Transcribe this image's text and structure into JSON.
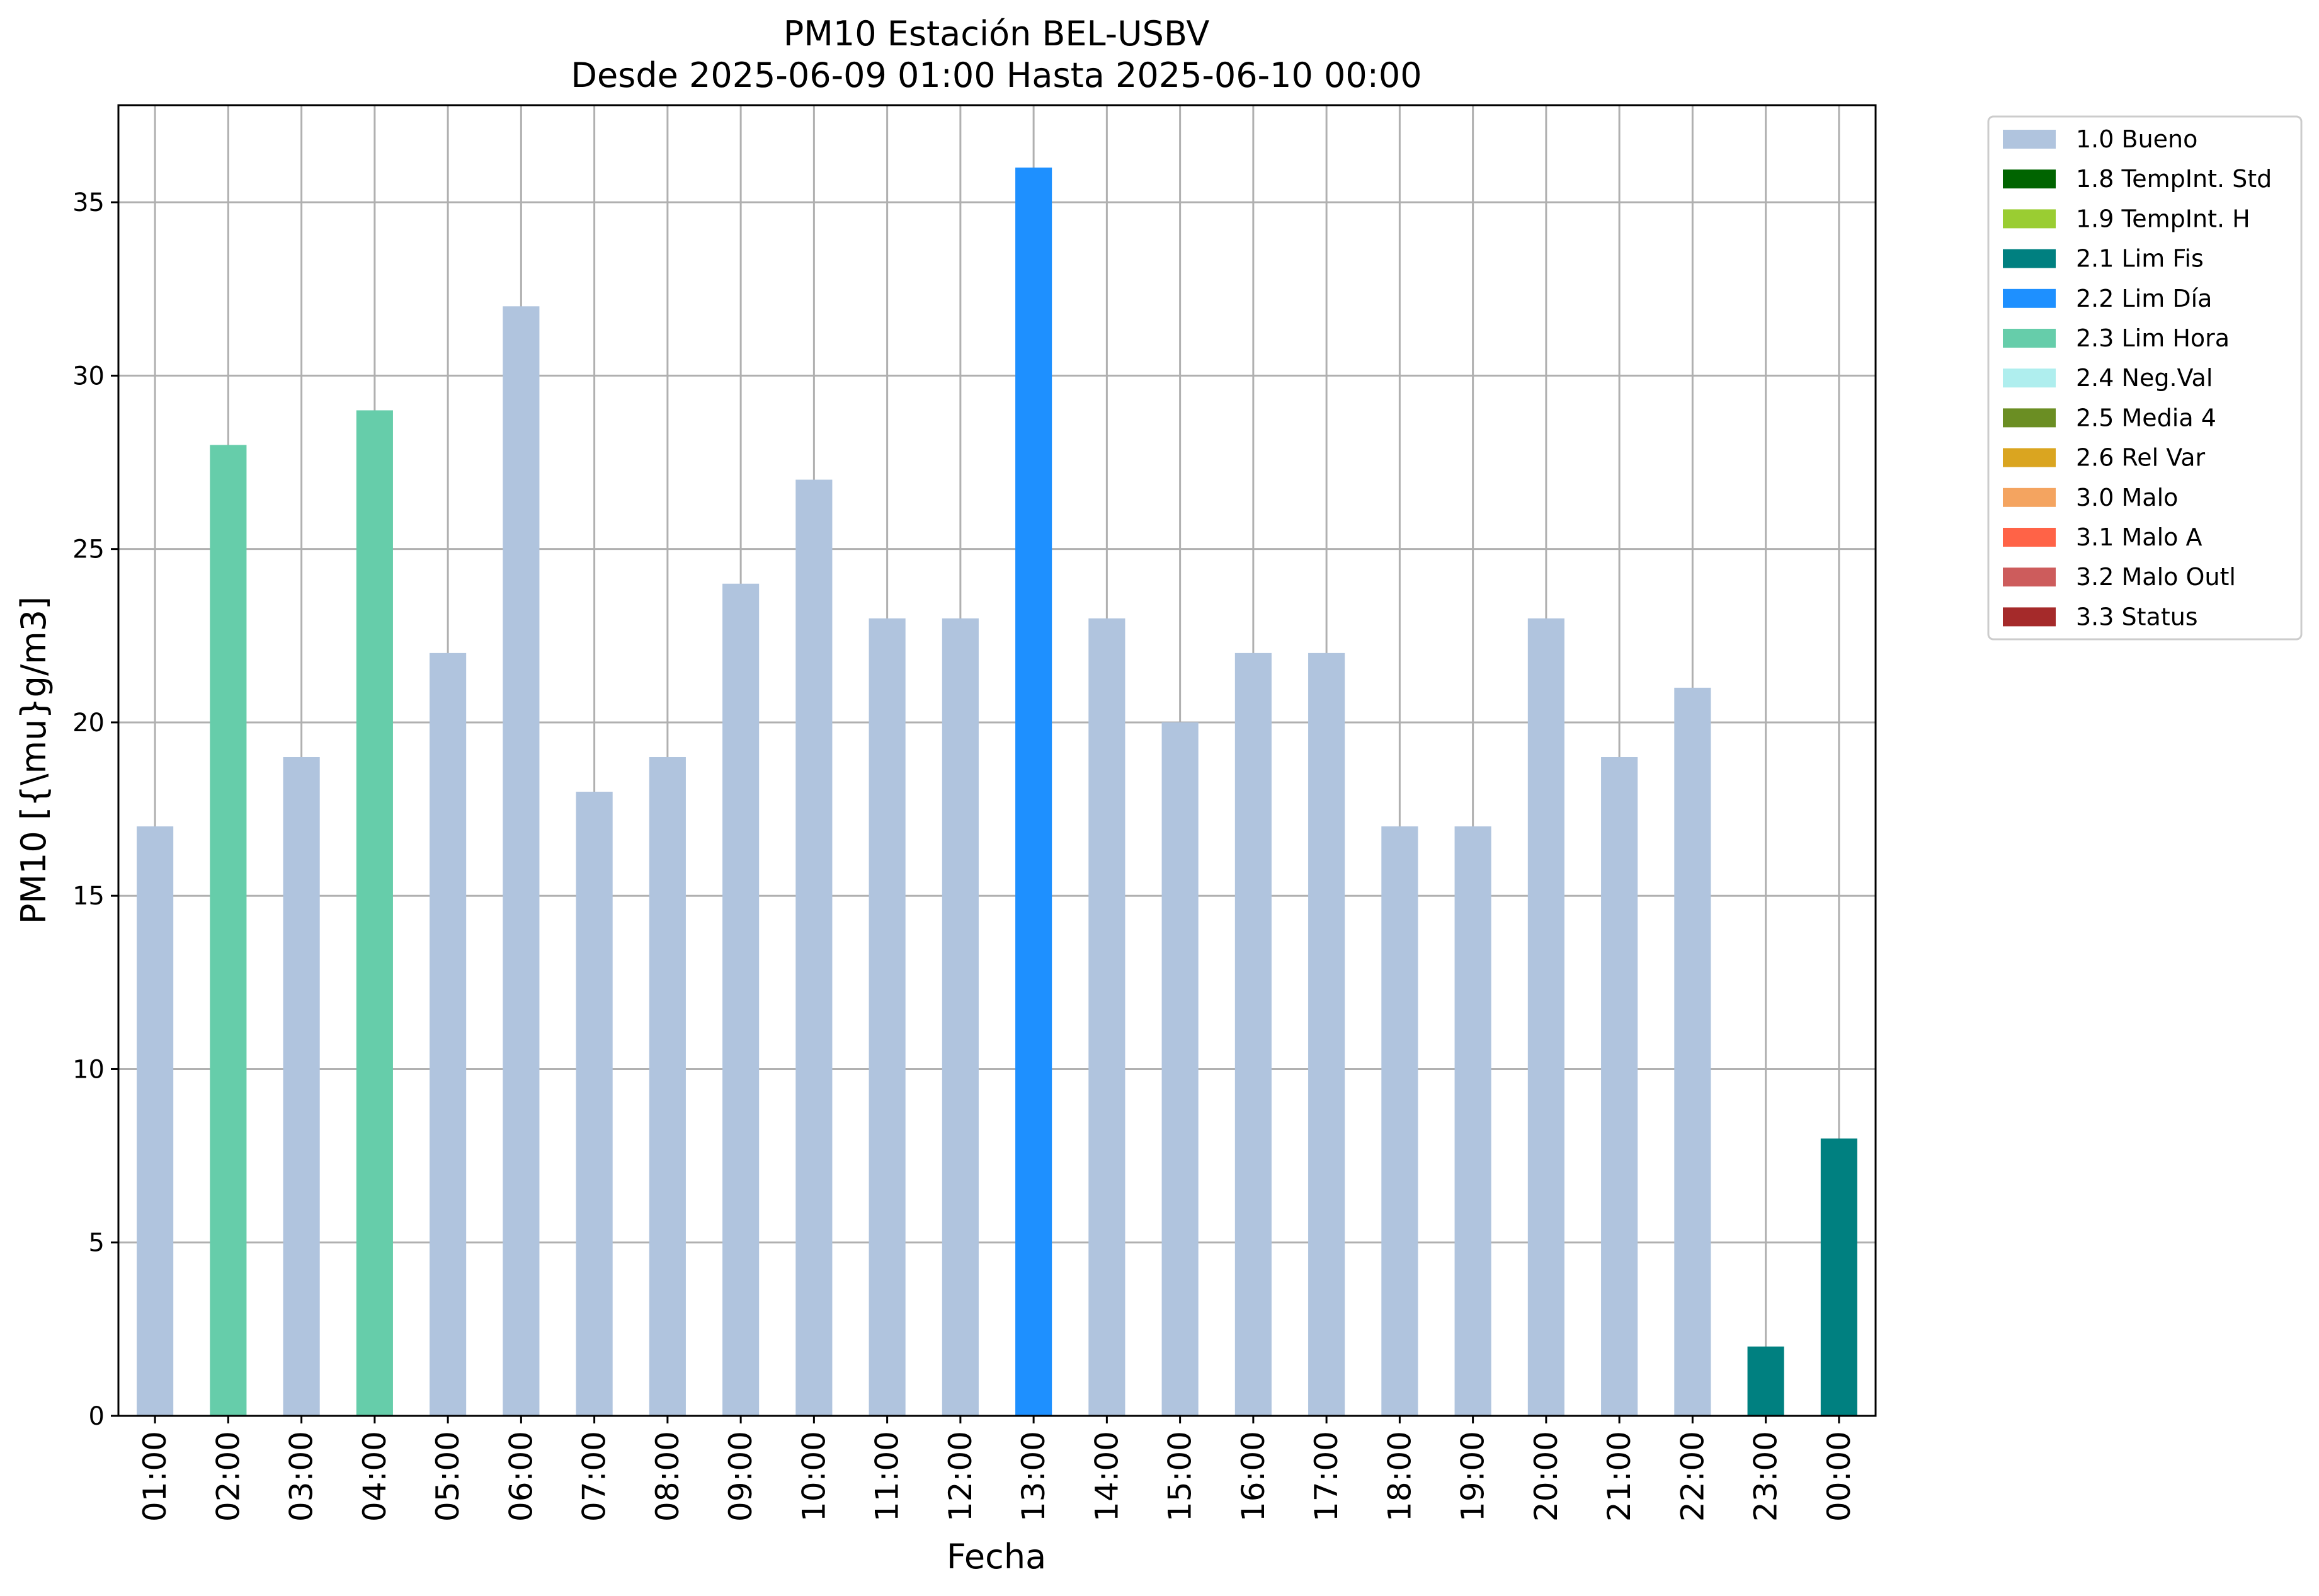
{
  "chart_data": {
    "type": "bar",
    "title": "PM10 Estación BEL-USBV",
    "subtitle": "Desde 2025-06-09 01:00 Hasta 2025-06-10 00:00",
    "xlabel": "Fecha",
    "ylabel": "PM10 [{\\mu}g/m3]",
    "ylim": [
      0,
      37.8
    ],
    "yticks": [
      0,
      5,
      10,
      15,
      20,
      25,
      30,
      35
    ],
    "grid": true,
    "legend_position": "outside-top-right",
    "categories": [
      "01:00",
      "02:00",
      "03:00",
      "04:00",
      "05:00",
      "06:00",
      "07:00",
      "08:00",
      "09:00",
      "10:00",
      "11:00",
      "12:00",
      "13:00",
      "14:00",
      "15:00",
      "16:00",
      "17:00",
      "18:00",
      "19:00",
      "20:00",
      "21:00",
      "22:00",
      "23:00",
      "00:00"
    ],
    "values": [
      17,
      28,
      19,
      29,
      22,
      32,
      18,
      19,
      24,
      27,
      23,
      23,
      36,
      23,
      20,
      22,
      22,
      17,
      17,
      23,
      19,
      21,
      2,
      8
    ],
    "flags": [
      "1.0 Bueno",
      "2.3 Lim Hora",
      "1.0 Bueno",
      "2.3 Lim Hora",
      "1.0 Bueno",
      "1.0 Bueno",
      "1.0 Bueno",
      "1.0 Bueno",
      "1.0 Bueno",
      "1.0 Bueno",
      "1.0 Bueno",
      "1.0 Bueno",
      "2.2 Lim Día",
      "1.0 Bueno",
      "1.0 Bueno",
      "1.0 Bueno",
      "1.0 Bueno",
      "1.0 Bueno",
      "1.0 Bueno",
      "1.0 Bueno",
      "1.0 Bueno",
      "1.0 Bueno",
      "2.1 Lim Fis",
      "2.1 Lim Fis"
    ],
    "legend": [
      {
        "label": "1.0 Bueno",
        "color": "#b0c4de"
      },
      {
        "label": "1.8 TempInt. Std",
        "color": "#006400"
      },
      {
        "label": "1.9 TempInt. H",
        "color": "#9acd32"
      },
      {
        "label": "2.1 Lim Fis",
        "color": "#008080"
      },
      {
        "label": "2.2 Lim Día",
        "color": "#1e90ff"
      },
      {
        "label": "2.3 Lim Hora",
        "color": "#66cdaa"
      },
      {
        "label": "2.4 Neg.Val",
        "color": "#afeeee"
      },
      {
        "label": "2.5 Media 4",
        "color": "#6b8e23"
      },
      {
        "label": "2.6 Rel Var",
        "color": "#daa520"
      },
      {
        "label": "3.0 Malo",
        "color": "#f4a460"
      },
      {
        "label": "3.1 Malo A",
        "color": "#ff6347"
      },
      {
        "label": "3.2 Malo Outl",
        "color": "#cd5c5c"
      },
      {
        "label": "3.3 Status",
        "color": "#a52a2a"
      }
    ]
  }
}
